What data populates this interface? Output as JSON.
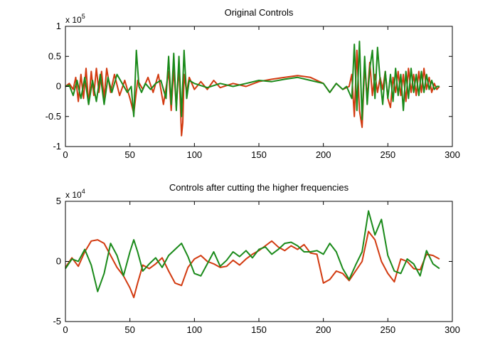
{
  "chart_data": [
    {
      "type": "line",
      "title": "Original Controls",
      "xlabel": "",
      "ylabel": "",
      "xlim": [
        0,
        300
      ],
      "ylim": [
        -1,
        1
      ],
      "exponent_label": {
        "base": "x 10",
        "power": "5"
      },
      "xticks": [
        0,
        50,
        100,
        150,
        200,
        250,
        300
      ],
      "xtick_labels": [
        "0",
        "50",
        "100",
        "150",
        "200",
        "250",
        "300"
      ],
      "yticks": [
        -1,
        -0.5,
        0,
        0.5,
        1
      ],
      "ytick_labels": [
        "-1",
        "-0.5",
        "0",
        "0.5",
        "1"
      ],
      "grid": false,
      "series": [
        {
          "color": "#d23a10",
          "x": [
            0,
            3,
            6,
            8,
            10,
            12,
            14,
            16,
            18,
            20,
            22,
            24,
            26,
            28,
            30,
            32,
            35,
            38,
            42,
            46,
            50,
            53,
            56,
            60,
            64,
            68,
            72,
            76,
            80,
            82,
            84,
            86,
            88,
            90,
            91,
            92,
            94,
            96,
            100,
            105,
            110,
            115,
            120,
            130,
            140,
            150,
            160,
            170,
            180,
            190,
            200,
            205,
            210,
            215,
            220,
            222,
            224,
            226,
            228,
            230,
            232,
            234,
            236,
            238,
            240,
            242,
            244,
            246,
            248,
            250,
            252,
            254,
            256,
            258,
            260,
            262,
            264,
            266,
            268,
            270,
            272,
            274,
            276,
            278,
            280,
            282,
            284,
            286,
            288,
            290
          ],
          "y": [
            0.0,
            0.05,
            -0.05,
            0.15,
            -0.25,
            0.2,
            -0.2,
            0.3,
            -0.3,
            0.25,
            -0.15,
            0.3,
            -0.1,
            0.25,
            -0.2,
            0.3,
            -0.1,
            0.2,
            -0.15,
            0.1,
            -0.2,
            -0.45,
            0.1,
            -0.05,
            0.15,
            -0.1,
            0.2,
            -0.3,
            0.25,
            -0.4,
            0.3,
            -0.35,
            0.35,
            -0.82,
            -0.6,
            0.2,
            -0.1,
            0.15,
            -0.05,
            0.08,
            -0.05,
            0.1,
            -0.02,
            0.05,
            0.0,
            0.08,
            0.12,
            0.15,
            0.18,
            0.15,
            0.05,
            -0.1,
            0.05,
            -0.05,
            0.0,
            0.2,
            -0.5,
            0.6,
            -0.4,
            -0.68,
            0.35,
            -0.2,
            0.4,
            -0.15,
            0.2,
            -0.1,
            0.15,
            -0.05,
            0.25,
            -0.2,
            -0.35,
            0.15,
            -0.1,
            0.25,
            -0.15,
            0.2,
            -0.25,
            0.3,
            -0.1,
            0.2,
            -0.15,
            0.25,
            -0.1,
            0.3,
            -0.05,
            0.15,
            -0.1,
            0.05,
            -0.05,
            0.0
          ]
        },
        {
          "color": "#1a8a1a",
          "x": [
            0,
            3,
            6,
            9,
            12,
            15,
            18,
            21,
            24,
            27,
            30,
            33,
            36,
            40,
            44,
            48,
            51,
            53,
            55,
            57,
            59,
            62,
            66,
            70,
            74,
            78,
            80,
            82,
            84,
            86,
            88,
            90,
            92,
            94,
            96,
            100,
            110,
            120,
            130,
            140,
            150,
            160,
            170,
            180,
            190,
            200,
            205,
            210,
            215,
            218,
            220,
            222,
            224,
            226,
            228,
            230,
            232,
            234,
            236,
            238,
            240,
            242,
            244,
            246,
            248,
            250,
            252,
            254,
            256,
            258,
            260,
            262,
            264,
            266,
            268,
            270,
            272,
            274,
            276,
            278,
            280,
            282,
            284,
            286,
            288,
            290
          ],
          "y": [
            0.0,
            0.02,
            -0.15,
            0.1,
            -0.2,
            0.15,
            -0.3,
            0.1,
            -0.25,
            0.2,
            -0.3,
            0.15,
            -0.1,
            0.2,
            0.05,
            -0.1,
            0.0,
            -0.5,
            0.6,
            0.0,
            -0.1,
            0.05,
            -0.05,
            0.05,
            0.1,
            -0.2,
            0.5,
            -0.3,
            0.55,
            -0.4,
            0.5,
            -0.5,
            0.6,
            -0.2,
            0.1,
            0.05,
            -0.02,
            0.05,
            0.0,
            0.05,
            0.1,
            0.08,
            0.12,
            0.15,
            0.1,
            0.05,
            -0.1,
            0.05,
            -0.05,
            0.0,
            -0.1,
            -0.2,
            0.7,
            -0.4,
            0.75,
            -0.55,
            0.5,
            -0.3,
            0.3,
            0.6,
            -0.2,
            0.65,
            0.1,
            -0.3,
            0.25,
            -0.2,
            0.2,
            -0.25,
            0.3,
            -0.15,
            0.2,
            -0.4,
            0.25,
            -0.2,
            0.3,
            -0.1,
            0.2,
            -0.15,
            0.25,
            -0.1,
            0.2,
            -0.05,
            0.1,
            -0.05,
            0.0,
            0.0
          ]
        }
      ]
    },
    {
      "type": "line",
      "title": "Controls after cutting the higher frequencies",
      "xlabel": "",
      "ylabel": "",
      "xlim": [
        0,
        300
      ],
      "ylim": [
        -5,
        5
      ],
      "exponent_label": {
        "base": "x 10",
        "power": "4"
      },
      "xticks": [
        0,
        50,
        100,
        150,
        200,
        250,
        300
      ],
      "xtick_labels": [
        "0",
        "50",
        "100",
        "150",
        "200",
        "250",
        "300"
      ],
      "yticks": [
        -5,
        0,
        5
      ],
      "ytick_labels": [
        "-5",
        "0",
        "5"
      ],
      "grid": false,
      "series": [
        {
          "color": "#d23a10",
          "x": [
            0,
            5,
            10,
            15,
            20,
            25,
            30,
            35,
            40,
            45,
            50,
            53,
            56,
            60,
            65,
            70,
            75,
            80,
            85,
            90,
            95,
            100,
            105,
            110,
            115,
            120,
            125,
            130,
            135,
            140,
            145,
            150,
            155,
            160,
            165,
            170,
            175,
            180,
            185,
            190,
            195,
            200,
            205,
            210,
            215,
            220,
            225,
            230,
            235,
            240,
            245,
            250,
            255,
            260,
            265,
            270,
            275,
            280,
            285,
            290
          ],
          "y": [
            -0.5,
            0.3,
            -0.4,
            0.8,
            1.7,
            1.8,
            1.5,
            0.5,
            -0.5,
            -1.2,
            -2.2,
            -3.0,
            -1.8,
            -0.3,
            -0.6,
            -0.2,
            0.3,
            -0.8,
            -1.8,
            -2.0,
            -0.5,
            0.2,
            0.5,
            0.0,
            -0.2,
            -0.5,
            -0.4,
            0.1,
            -0.3,
            0.2,
            0.6,
            0.9,
            1.3,
            1.7,
            1.2,
            0.9,
            1.3,
            1.0,
            1.4,
            0.7,
            0.6,
            -1.8,
            -1.5,
            -0.8,
            -1.0,
            -1.6,
            -0.8,
            0.0,
            2.5,
            1.8,
            0.0,
            -1.0,
            -1.7,
            0.2,
            0.0,
            -0.6,
            -0.7,
            0.6,
            0.5,
            0.2
          ]
        },
        {
          "color": "#1a8a1a",
          "x": [
            0,
            5,
            10,
            15,
            20,
            25,
            30,
            35,
            40,
            45,
            50,
            53,
            56,
            60,
            65,
            70,
            75,
            80,
            85,
            90,
            95,
            100,
            105,
            110,
            115,
            120,
            125,
            130,
            135,
            140,
            145,
            150,
            155,
            160,
            165,
            170,
            175,
            180,
            185,
            190,
            195,
            200,
            205,
            210,
            215,
            220,
            225,
            230,
            235,
            240,
            245,
            250,
            255,
            260,
            265,
            270,
            275,
            280,
            285,
            290
          ],
          "y": [
            -0.6,
            0.2,
            0.0,
            1.0,
            -0.3,
            -2.5,
            -1.0,
            1.5,
            0.5,
            -1.2,
            0.8,
            1.8,
            0.8,
            -0.8,
            -0.2,
            0.3,
            -0.5,
            0.5,
            1.0,
            1.5,
            0.4,
            -1.0,
            -1.2,
            -0.2,
            0.8,
            -0.4,
            0.1,
            0.8,
            0.4,
            0.9,
            0.3,
            1.0,
            1.2,
            0.6,
            1.0,
            1.5,
            1.6,
            1.3,
            0.8,
            0.8,
            0.9,
            0.6,
            1.5,
            0.8,
            -0.6,
            -1.5,
            -0.3,
            0.8,
            4.2,
            2.2,
            3.5,
            0.5,
            -0.8,
            -1.0,
            0.2,
            -0.2,
            -1.2,
            0.9,
            -0.2,
            -0.6
          ]
        }
      ]
    }
  ]
}
